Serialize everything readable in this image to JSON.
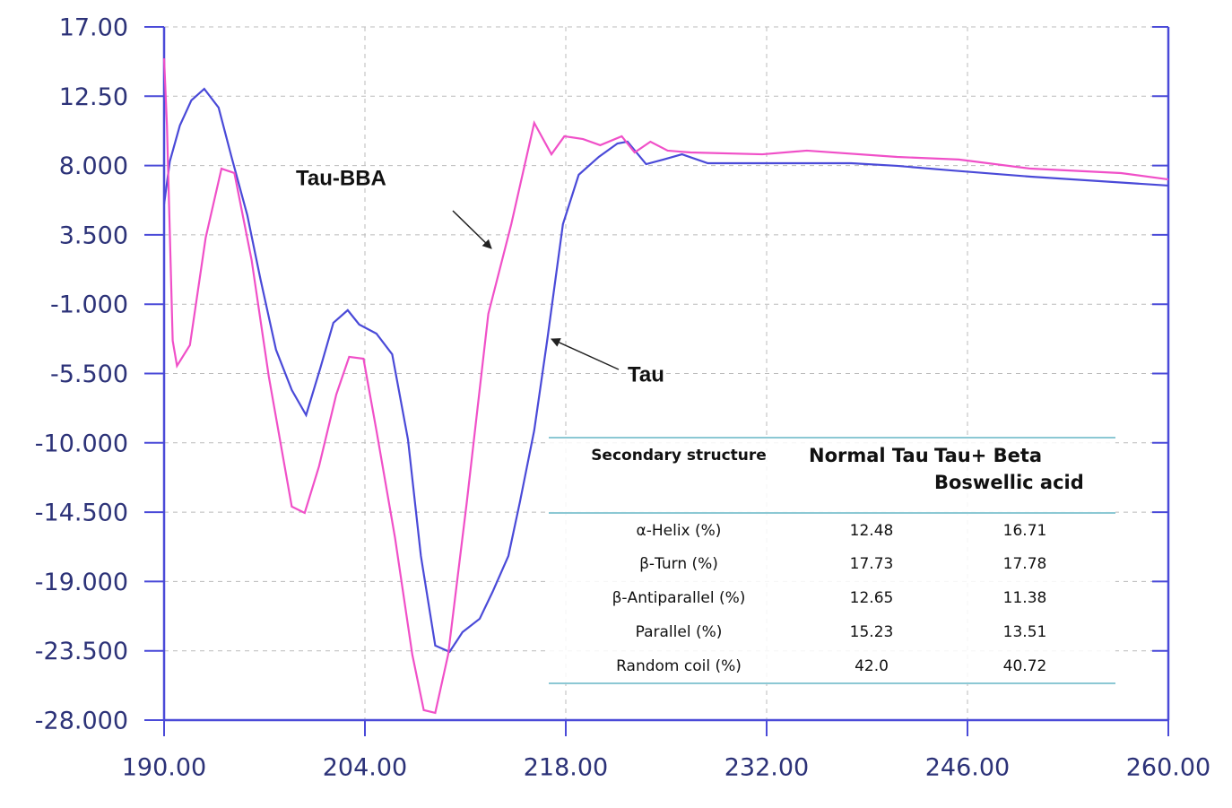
{
  "chart_data": {
    "type": "line",
    "xlim": [
      190,
      260
    ],
    "ylim": [
      -28,
      17
    ],
    "xticks": [
      {
        "value": 190,
        "label": "190.00"
      },
      {
        "value": 204,
        "label": "204.00"
      },
      {
        "value": 218,
        "label": "218.00"
      },
      {
        "value": 232,
        "label": "232.00"
      },
      {
        "value": 246,
        "label": "246.00"
      },
      {
        "value": 260,
        "label": "260.00"
      }
    ],
    "yticks": [
      {
        "value": 17,
        "label": "17.00"
      },
      {
        "value": 12.5,
        "label": "12.50"
      },
      {
        "value": 8,
        "label": "8.000"
      },
      {
        "value": 3.5,
        "label": "3.500"
      },
      {
        "value": -1,
        "label": "-1.000"
      },
      {
        "value": -5.5,
        "label": "-5.500"
      },
      {
        "value": -10,
        "label": "-10.000"
      },
      {
        "value": -14.5,
        "label": "-14.500"
      },
      {
        "value": -19,
        "label": "-19.000"
      },
      {
        "value": -23.5,
        "label": "-23.500"
      },
      {
        "value": -28,
        "label": "-28.000"
      }
    ],
    "grid": true,
    "series": [
      {
        "name": "Tau",
        "color": "#4a4ad8",
        "x": [
          190,
          190.4,
          191.1,
          191.9,
          192.8,
          193.8,
          194.7,
          195.8,
          196.7,
          197.8,
          198.9,
          199.9,
          200.9,
          201.8,
          202.8,
          203.6,
          204.8,
          205.9,
          207,
          207.9,
          208.9,
          209.9,
          210.8,
          212,
          212.9,
          214,
          214.8,
          215.8,
          216.7,
          217.8,
          218.9,
          220.3,
          221.6,
          222.3,
          223.6,
          224.8,
          226.1,
          227.9,
          231.7,
          237.9,
          241.1,
          244.8,
          250.4,
          260
        ],
        "values": [
          5.48,
          8.27,
          10.6,
          12.23,
          12.98,
          11.76,
          8.56,
          4.78,
          0.7,
          -3.95,
          -6.57,
          -8.2,
          -5.12,
          -2.21,
          -1.39,
          -2.32,
          -2.91,
          -4.25,
          -9.78,
          -17.34,
          -23.16,
          -23.57,
          -22.29,
          -21.42,
          -19.67,
          -17.34,
          -13.85,
          -9.19,
          -3.37,
          4.19,
          7.4,
          8.56,
          9.43,
          9.55,
          8.09,
          8.39,
          8.73,
          8.15,
          8.15,
          8.15,
          7.98,
          7.69,
          7.28,
          6.7
        ]
      },
      {
        "name": "Tau-BBA",
        "color": "#f050c8",
        "x": [
          190,
          190.2,
          190.6,
          190.9,
          191.8,
          192.9,
          194,
          194.9,
          196.1,
          197.3,
          198.9,
          199.8,
          200.8,
          202,
          202.9,
          203.9,
          204.8,
          206.1,
          207.3,
          208.1,
          208.9,
          209.8,
          211.1,
          212.6,
          214.2,
          215.8,
          217,
          217.9,
          219.2,
          220.4,
          221.9,
          222.8,
          223.9,
          225.1,
          226.7,
          231.7,
          234.8,
          241.1,
          245.4,
          250.4,
          256.7,
          260
        ],
        "values": [
          14.96,
          10.6,
          -3.37,
          -5.0,
          -3.66,
          3.32,
          7.8,
          7.51,
          1.87,
          -5.7,
          -14.14,
          -14.55,
          -11.52,
          -6.87,
          -4.42,
          -4.54,
          -9.19,
          -16.18,
          -23.74,
          -27.35,
          -27.53,
          -23.74,
          -13.85,
          -1.63,
          4.19,
          10.77,
          8.73,
          9.9,
          9.72,
          9.32,
          9.9,
          8.85,
          9.55,
          8.97,
          8.85,
          8.73,
          8.97,
          8.56,
          8.39,
          7.8,
          7.51,
          7.1
        ]
      }
    ]
  },
  "table": {
    "header": [
      "Secondary structure",
      "Normal Tau",
      "Tau+ Beta Boswellic acid"
    ],
    "rows": [
      [
        "α-Helix (%)",
        "12.48",
        "16.71"
      ],
      [
        "β-Turn (%)",
        "17.73",
        "17.78"
      ],
      [
        "β-Antiparallel (%)",
        "12.65",
        "11.38"
      ],
      [
        "Parallel (%)",
        "15.23",
        "13.51"
      ],
      [
        "Random coil (%)",
        "42.0",
        "40.72"
      ]
    ]
  }
}
